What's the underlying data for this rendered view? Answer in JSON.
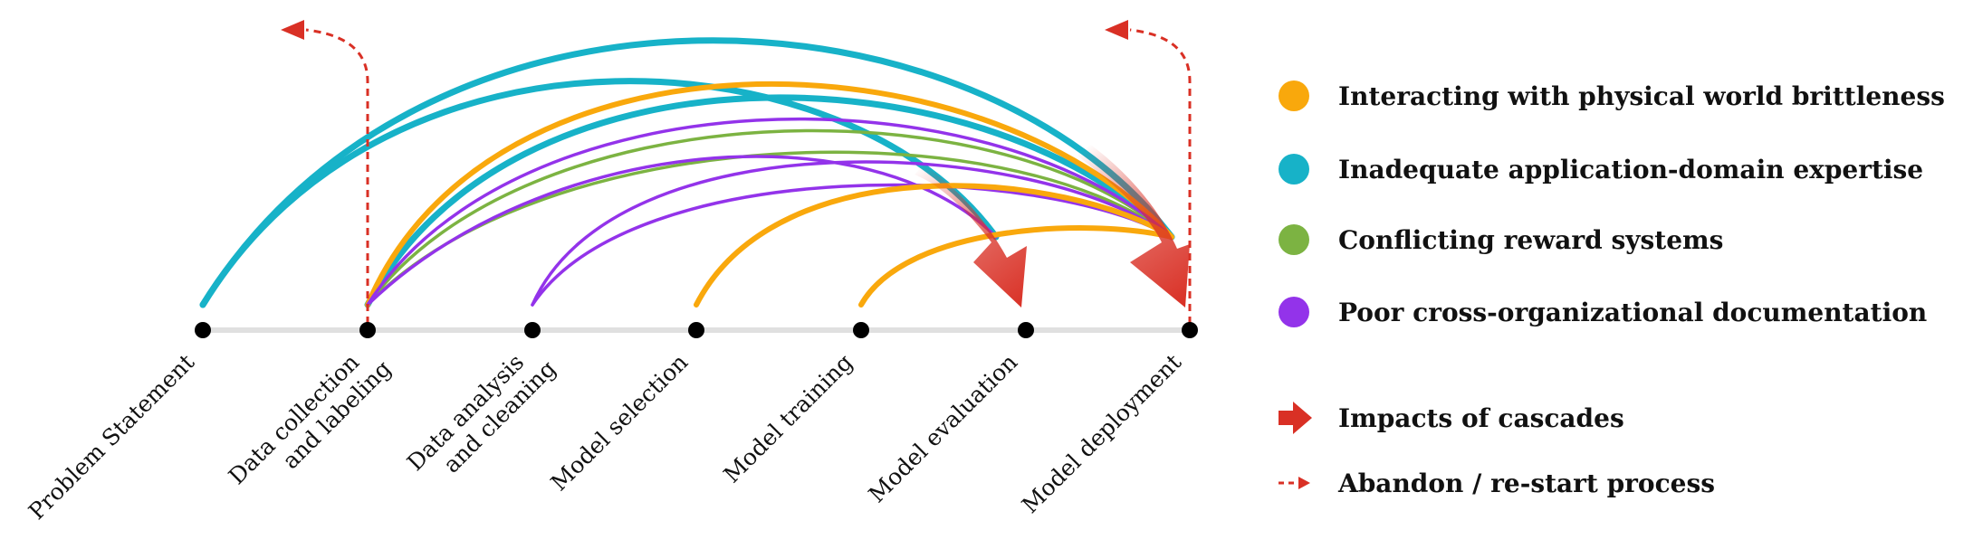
{
  "stages": [
    {
      "lines": [
        "Problem Statement"
      ]
    },
    {
      "lines": [
        "Data collection",
        "and labeling"
      ]
    },
    {
      "lines": [
        "Data analysis",
        "and cleaning"
      ]
    },
    {
      "lines": [
        "Model selection"
      ]
    },
    {
      "lines": [
        "Model training"
      ]
    },
    {
      "lines": [
        "Model evaluation"
      ]
    },
    {
      "lines": [
        "Model deployment"
      ]
    }
  ],
  "colors": {
    "physical": "#F9A80C",
    "expertise": "#17B2C8",
    "reward": "#7CB342",
    "documentation": "#9333EA",
    "impact": "#D93025",
    "axis": "#E0E0E0",
    "node": "#000000"
  },
  "cascades": [
    {
      "category": "expertise",
      "from": 0,
      "to": 5
    },
    {
      "category": "expertise",
      "from": 0,
      "to": 6
    },
    {
      "category": "expertise",
      "from": 1,
      "to": 6
    },
    {
      "category": "physical",
      "from": 1,
      "to": 6
    },
    {
      "category": "reward",
      "from": 1,
      "to": 6
    },
    {
      "category": "reward",
      "from": 1,
      "to": 6
    },
    {
      "category": "documentation",
      "from": 1,
      "to": 6
    },
    {
      "category": "documentation",
      "from": 1,
      "to": 5
    },
    {
      "category": "documentation",
      "from": 2,
      "to": 6
    },
    {
      "category": "documentation",
      "from": 2,
      "to": 6
    },
    {
      "category": "physical",
      "from": 3,
      "to": 6
    },
    {
      "category": "physical",
      "from": 4,
      "to": 6
    }
  ],
  "impacts": [
    {
      "stage": 5,
      "icon": "red-arrow-icon"
    },
    {
      "stage": 6,
      "icon": "red-arrow-icon"
    }
  ],
  "abandons": [
    {
      "stage": 1,
      "icon": "dashed-return-arrow-icon"
    },
    {
      "stage": 6,
      "icon": "dashed-return-arrow-icon"
    }
  ],
  "legend": {
    "categories": [
      {
        "key": "physical",
        "label": "Interacting with physical world brittleness"
      },
      {
        "key": "expertise",
        "label": "Inadequate application-domain expertise"
      },
      {
        "key": "reward",
        "label": "Conflicting reward systems"
      },
      {
        "key": "documentation",
        "label": "Poor cross-organizational documentation"
      }
    ],
    "impact_label": "Impacts of cascades",
    "abandon_label": "Abandon / re-start process"
  }
}
